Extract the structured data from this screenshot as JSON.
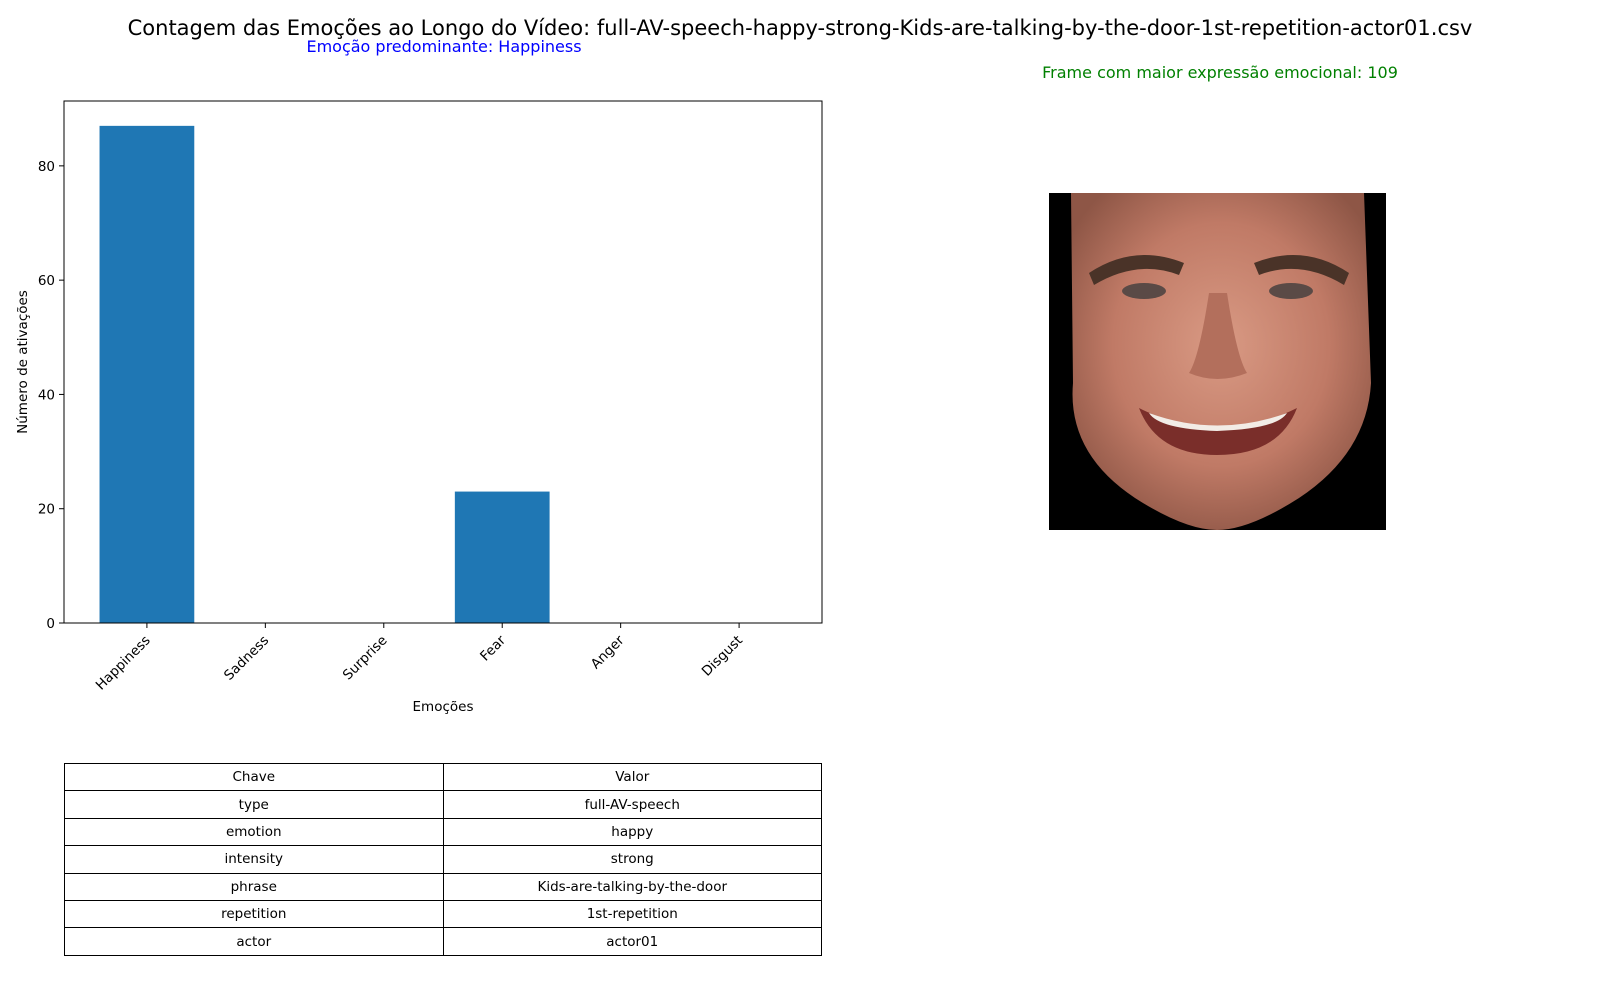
{
  "title": "Contagem das Emoções ao Longo do Vídeo: full-AV-speech-happy-strong-Kids-are-talking-by-the-door-1st-repetition-actor01.csv",
  "predominant_label": "Emoção predominante: Happiness",
  "frame_label": "Frame com maior expressão emocional: 109",
  "colors": {
    "bar": "#1f77b4",
    "predominant_text": "#0000ff",
    "frame_text": "#008000"
  },
  "chart_data": {
    "type": "bar",
    "categories": [
      "Happiness",
      "Sadness",
      "Surprise",
      "Fear",
      "Anger",
      "Disgust"
    ],
    "values": [
      87,
      0,
      0,
      23,
      0,
      0
    ],
    "xlabel": "Emoções",
    "ylabel": "Número de ativações",
    "ylim": [
      0,
      91.35
    ],
    "yticks": [
      0,
      20,
      40,
      60,
      80
    ],
    "grid": false
  },
  "image": {
    "description_icon": "face-photo"
  },
  "table": {
    "header": [
      "Chave",
      "Valor"
    ],
    "rows": [
      [
        "type",
        "full-AV-speech"
      ],
      [
        "emotion",
        "happy"
      ],
      [
        "intensity",
        "strong"
      ],
      [
        "phrase",
        "Kids-are-talking-by-the-door"
      ],
      [
        "repetition",
        "1st-repetition"
      ],
      [
        "actor",
        "actor01"
      ]
    ]
  }
}
